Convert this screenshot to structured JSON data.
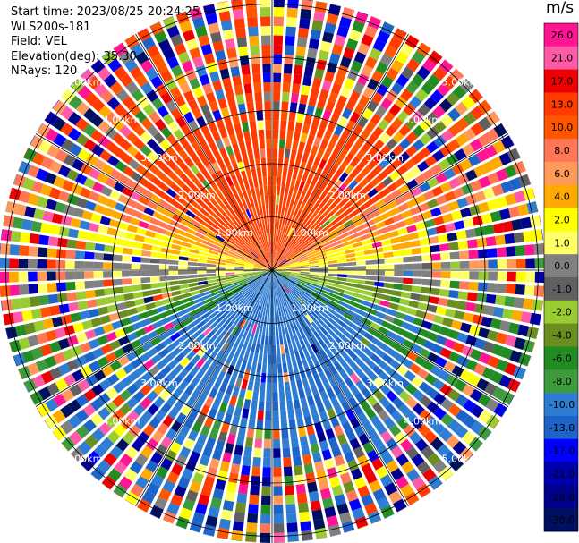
{
  "header": {
    "start_time": "Start time: 2023/08/25 20:24:25",
    "instrument": "WLS200s-181",
    "field": "Field: VEL",
    "elevation": "Elevation(deg): 35.30",
    "nrays": "NRays: 120"
  },
  "chart_data": {
    "type": "heatmap",
    "projection": "polar-ppi",
    "n_rays": 120,
    "range_rings_km": [
      1.0,
      2.0,
      3.0,
      4.0,
      5.0
    ],
    "range_labels": [
      "1.00km",
      "2.00km",
      "3.00km",
      "4.00km",
      "5.00km"
    ],
    "max_range_km": 5.0,
    "colorbar": {
      "unit": "m/s",
      "ticks": [
        "26.0",
        "21.0",
        "17.0",
        "13.0",
        "10.0",
        "8.0",
        "6.0",
        "4.0",
        "2.0",
        "1.0",
        "0.0",
        "-1.0",
        "-2.0",
        "-4.0",
        "-6.0",
        "-8.0",
        "-10.0",
        "-13.0",
        "-17.0",
        "-21.0",
        "-26.0",
        "-30.0"
      ],
      "colors": [
        "#ff1493",
        "#ff5aa8",
        "#ee0000",
        "#ff3b00",
        "#ff5500",
        "#ff7755",
        "#ff9a5a",
        "#ffaa00",
        "#ffff00",
        "#ffff66",
        "#808080",
        "#606060",
        "#99cc33",
        "#6b8e23",
        "#228b22",
        "#3d9b3d",
        "#2e7dd2",
        "#1e64c8",
        "#0000ff",
        "#0000aa",
        "#00008b",
        "#001060"
      ]
    },
    "velocity_pattern": {
      "north_sector": "+10 to +13 m/s",
      "east_west_band": "+2 to +4 m/s",
      "south_sector": "-8 to -10 m/s",
      "outer_ranges": "noise"
    }
  }
}
